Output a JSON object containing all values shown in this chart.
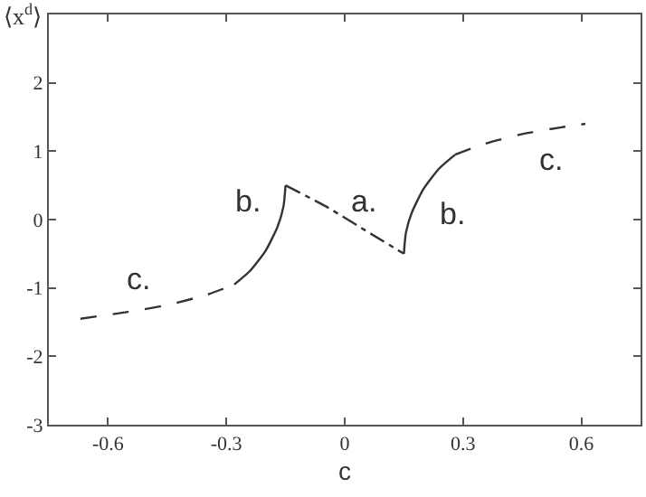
{
  "chart_data": {
    "type": "line",
    "xlabel": "c",
    "ylabel": "⟨x$^{d}$⟩",
    "xlim": [
      -0.75,
      0.75
    ],
    "xticks": [
      -0.6,
      -0.3,
      0,
      0.3,
      0.6
    ],
    "ylim": [
      -3,
      3
    ],
    "yticks": [
      -3,
      -2,
      -1,
      0,
      1,
      2
    ],
    "marker": "none",
    "series": [
      {
        "name": "c.",
        "color": "#333333",
        "line_style": "dashed",
        "x": [
          -0.67,
          -0.55,
          -0.45,
          -0.35,
          -0.28
        ],
        "values": [
          -1.45,
          -1.35,
          -1.25,
          -1.1,
          -0.95
        ]
      },
      {
        "name": "b.",
        "color": "#333333",
        "line_style": "solid",
        "x": [
          -0.28,
          -0.24,
          -0.2,
          -0.17,
          -0.155,
          -0.15
        ],
        "values": [
          -0.95,
          -0.75,
          -0.45,
          -0.1,
          0.2,
          0.5
        ]
      },
      {
        "name": "a.",
        "color": "#333333",
        "line_style": "dotted",
        "x": [
          -0.15,
          -0.05,
          0.05,
          0.15
        ],
        "values": [
          0.5,
          0.2,
          -0.15,
          -0.5
        ]
      },
      {
        "name": "b.",
        "color": "#333333",
        "line_style": "solid",
        "x": [
          0.15,
          0.155,
          0.17,
          0.2,
          0.24,
          0.28
        ],
        "values": [
          -0.5,
          -0.2,
          0.1,
          0.45,
          0.75,
          0.95
        ]
      },
      {
        "name": "c.",
        "color": "#333333",
        "line_style": "dashed",
        "x": [
          0.28,
          0.35,
          0.45,
          0.55,
          0.61
        ],
        "values": [
          0.95,
          1.1,
          1.25,
          1.35,
          1.4
        ]
      }
    ]
  }
}
